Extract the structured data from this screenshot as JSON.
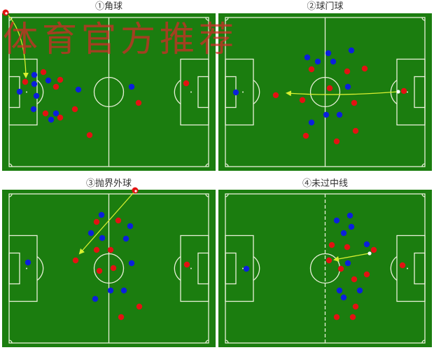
{
  "panels": [
    {
      "title": "①角球"
    },
    {
      "title": "②球门球"
    },
    {
      "title": "③抛界外球"
    },
    {
      "title": "④未过中线"
    }
  ],
  "watermark": "体育官方推荐",
  "colors": {
    "pitch": "#1b7d0f",
    "lines": "#e8f0d8",
    "team_red": "#e31212",
    "team_blue": "#0b1fdc",
    "ball": "#ffffff",
    "pass_arrow": "#d8f030"
  }
}
